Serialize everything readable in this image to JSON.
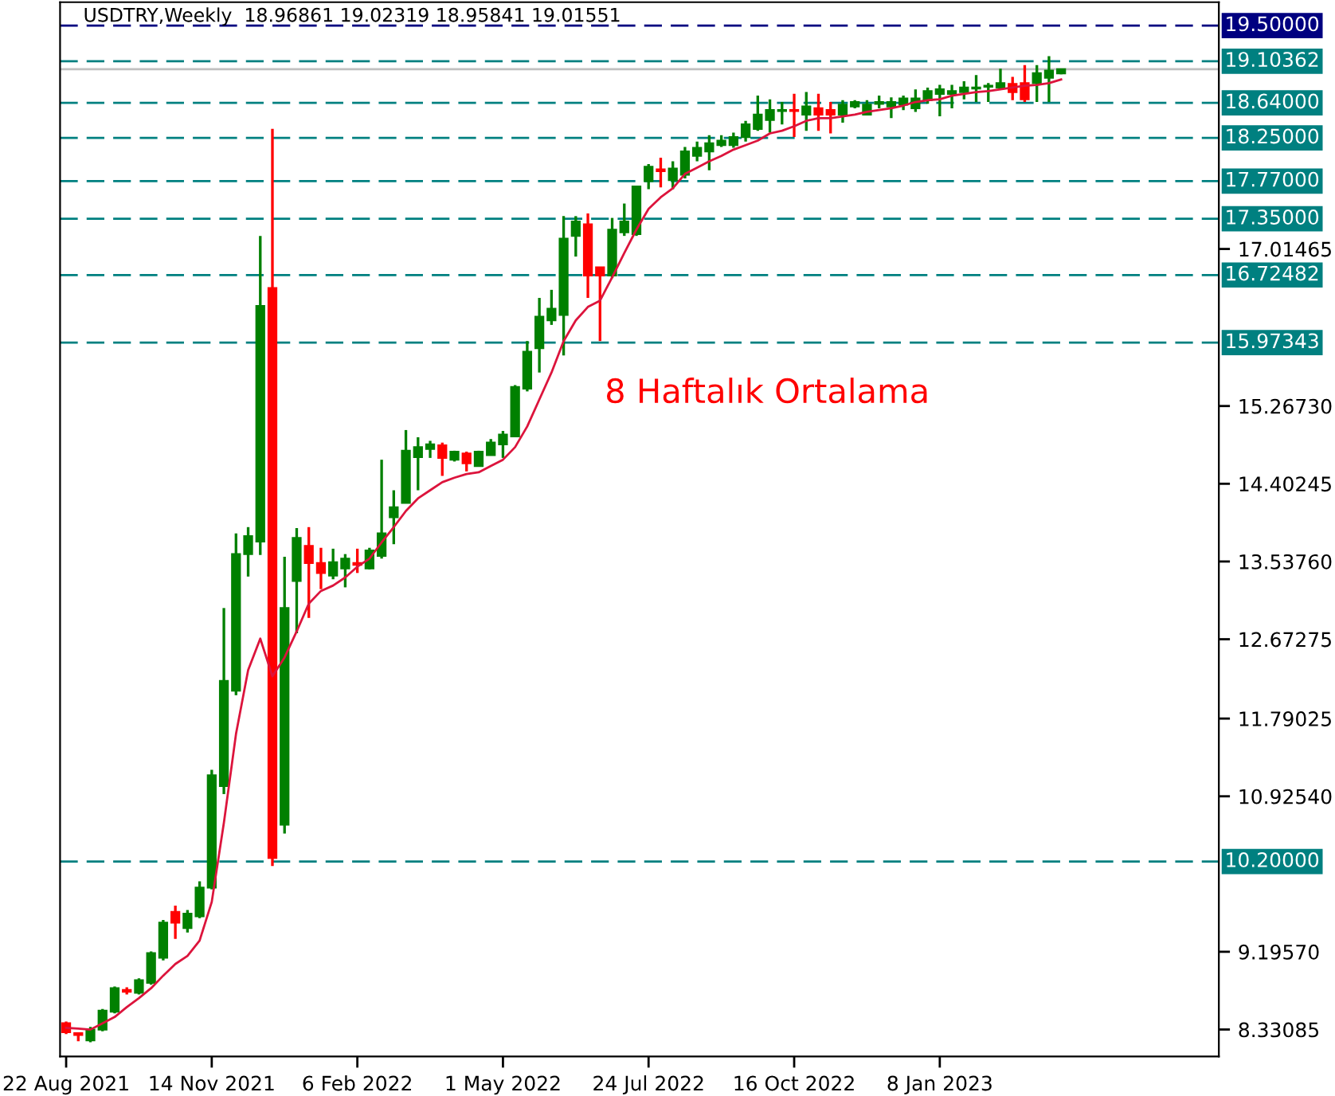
{
  "chart_data": {
    "type": "candlestick",
    "title": "USDTRY,Weekly  18.96861 19.02319 18.95841 19.01551",
    "annotations": [
      "8 Haftalık Ortalama"
    ],
    "categories": [
      "22 Aug 2021",
      null,
      null,
      null,
      null,
      null,
      null,
      null,
      null,
      null,
      null,
      null,
      "14 Nov 2021",
      null,
      null,
      null,
      null,
      null,
      null,
      null,
      null,
      null,
      null,
      null,
      "6 Feb 2022",
      null,
      null,
      null,
      null,
      null,
      null,
      null,
      null,
      null,
      null,
      null,
      "1 May 2022",
      null,
      null,
      null,
      null,
      null,
      null,
      null,
      null,
      null,
      null,
      null,
      "24 Jul 2022",
      null,
      null,
      null,
      null,
      null,
      null,
      null,
      null,
      null,
      null,
      null,
      "16 Oct 2022",
      null,
      null,
      null,
      null,
      null,
      null,
      null,
      null,
      null,
      null,
      null,
      "8 Jan 2023",
      null,
      null,
      null,
      null,
      null,
      null,
      null,
      null,
      null,
      null
    ],
    "series": [
      {
        "colors": [
          "#ff0000",
          "#ff0000",
          "#008000",
          "#008000",
          "#008000",
          "#ff0000",
          "#008000",
          "#008000",
          "#008000",
          "#ff0000",
          "#008000",
          "#008000",
          "#008000",
          "#008000",
          "#008000",
          "#008000",
          "#008000",
          "#ff0000",
          "#008000",
          "#008000",
          "#ff0000",
          "#ff0000",
          "#008000",
          "#008000",
          "#ff0000",
          "#008000",
          "#008000",
          "#008000",
          "#008000",
          "#008000",
          "#008000",
          "#ff0000",
          "#008000",
          "#ff0000",
          "#008000",
          "#008000",
          "#008000",
          "#008000",
          "#008000",
          "#008000",
          "#008000",
          "#008000",
          "#008000",
          "#ff0000",
          "#ff0000",
          "#008000",
          "#008000",
          "#008000",
          "#008000",
          "#ff0000",
          "#008000",
          "#008000",
          "#008000",
          "#008000",
          "#008000",
          "#008000",
          "#008000",
          "#008000",
          "#008000",
          "#008000",
          "#ff0000",
          "#008000",
          "#ff0000",
          "#ff0000",
          "#008000",
          "#008000",
          "#008000",
          "#008000",
          "#008000",
          "#008000",
          "#008000",
          "#008000",
          "#008000",
          "#008000",
          "#008000",
          "#008000",
          "#008000",
          "#008000",
          "#ff0000",
          "#ff0000",
          "#008000",
          "#008000",
          "#008000"
        ],
        "ohlc": [
          [
            8.4,
            8.42,
            8.28,
            8.3
          ],
          [
            8.29,
            8.3,
            8.2,
            8.27
          ],
          [
            8.21,
            8.36,
            8.19,
            8.33
          ],
          [
            8.33,
            8.56,
            8.31,
            8.54
          ],
          [
            8.53,
            8.81,
            8.51,
            8.79
          ],
          [
            8.77,
            8.8,
            8.72,
            8.75
          ],
          [
            8.74,
            8.9,
            8.72,
            8.88
          ],
          [
            8.85,
            9.2,
            8.83,
            9.18
          ],
          [
            9.13,
            9.55,
            9.1,
            9.52
          ],
          [
            9.64,
            9.71,
            9.34,
            9.52
          ],
          [
            9.46,
            9.66,
            9.41,
            9.62
          ],
          [
            9.59,
            9.98,
            9.57,
            9.91
          ],
          [
            9.91,
            11.22,
            9.89,
            11.16
          ],
          [
            11.04,
            13.02,
            10.95,
            12.21
          ],
          [
            12.1,
            13.85,
            12.05,
            13.62
          ],
          [
            13.62,
            13.92,
            13.37,
            13.82
          ],
          [
            13.76,
            17.16,
            13.61,
            16.38
          ],
          [
            16.58,
            18.35,
            10.15,
            10.24
          ],
          [
            10.61,
            13.59,
            10.51,
            13.02
          ],
          [
            13.32,
            13.91,
            12.74,
            13.8
          ],
          [
            13.71,
            13.92,
            12.91,
            13.52
          ],
          [
            13.52,
            13.69,
            13.23,
            13.41
          ],
          [
            13.38,
            13.68,
            13.34,
            13.53
          ],
          [
            13.46,
            13.62,
            13.25,
            13.57
          ],
          [
            13.52,
            13.68,
            13.41,
            13.5
          ],
          [
            13.46,
            13.69,
            13.45,
            13.66
          ],
          [
            13.6,
            14.67,
            13.57,
            13.85
          ],
          [
            14.03,
            14.33,
            13.73,
            14.14
          ],
          [
            14.19,
            15.0,
            14.19,
            14.77
          ],
          [
            14.7,
            14.92,
            14.33,
            14.81
          ],
          [
            14.79,
            14.88,
            14.69,
            14.84
          ],
          [
            14.83,
            14.86,
            14.49,
            14.69
          ],
          [
            14.67,
            14.77,
            14.65,
            14.76
          ],
          [
            14.74,
            14.76,
            14.54,
            14.63
          ],
          [
            14.6,
            14.77,
            14.6,
            14.76
          ],
          [
            14.72,
            14.9,
            14.72,
            14.86
          ],
          [
            14.84,
            14.99,
            14.69,
            14.95
          ],
          [
            14.93,
            15.5,
            14.93,
            15.48
          ],
          [
            15.46,
            15.99,
            15.43,
            15.87
          ],
          [
            15.91,
            16.47,
            15.64,
            16.26
          ],
          [
            16.22,
            16.56,
            16.17,
            16.35
          ],
          [
            16.28,
            17.38,
            15.83,
            17.13
          ],
          [
            17.16,
            17.38,
            16.93,
            17.32
          ],
          [
            17.29,
            17.41,
            16.47,
            16.72
          ],
          [
            16.81,
            16.81,
            15.99,
            16.72
          ],
          [
            16.72,
            17.36,
            16.69,
            17.23
          ],
          [
            17.2,
            17.52,
            17.16,
            17.32
          ],
          [
            17.18,
            17.72,
            17.16,
            17.71
          ],
          [
            17.77,
            17.96,
            17.68,
            17.93
          ],
          [
            17.9,
            18.03,
            17.7,
            17.88
          ],
          [
            17.78,
            17.99,
            17.68,
            17.91
          ],
          [
            17.84,
            18.15,
            17.8,
            18.1
          ],
          [
            18.05,
            18.21,
            17.99,
            18.14
          ],
          [
            18.1,
            18.28,
            17.89,
            18.19
          ],
          [
            18.17,
            18.28,
            18.15,
            18.22
          ],
          [
            18.17,
            18.31,
            18.14,
            18.26
          ],
          [
            18.26,
            18.44,
            18.21,
            18.4
          ],
          [
            18.35,
            18.72,
            18.33,
            18.51
          ],
          [
            18.45,
            18.68,
            18.31,
            18.56
          ],
          [
            18.55,
            18.65,
            18.4,
            18.56
          ],
          [
            18.56,
            18.74,
            18.26,
            18.55
          ],
          [
            18.51,
            18.76,
            18.33,
            18.6
          ],
          [
            18.58,
            18.74,
            18.33,
            18.51
          ],
          [
            18.56,
            18.65,
            18.3,
            18.51
          ],
          [
            18.51,
            18.67,
            18.42,
            18.62
          ],
          [
            18.6,
            18.67,
            18.58,
            18.65
          ],
          [
            18.51,
            18.67,
            18.51,
            18.62
          ],
          [
            18.63,
            18.72,
            18.58,
            18.65
          ],
          [
            18.6,
            18.7,
            18.47,
            18.65
          ],
          [
            18.62,
            18.72,
            18.56,
            18.69
          ],
          [
            18.58,
            18.79,
            18.54,
            18.69
          ],
          [
            18.67,
            18.81,
            18.63,
            18.77
          ],
          [
            18.74,
            18.84,
            18.49,
            18.79
          ],
          [
            18.74,
            18.84,
            18.58,
            18.77
          ],
          [
            18.76,
            18.88,
            18.68,
            18.81
          ],
          [
            18.8,
            18.95,
            18.65,
            18.81
          ],
          [
            18.82,
            18.86,
            18.65,
            18.83
          ],
          [
            18.81,
            19.02,
            18.79,
            18.86
          ],
          [
            18.85,
            18.93,
            18.67,
            18.76
          ],
          [
            18.86,
            19.06,
            18.65,
            18.68
          ],
          [
            18.86,
            19.06,
            18.65,
            18.97
          ],
          [
            18.92,
            19.16,
            18.65,
            19.0
          ],
          [
            18.96861,
            19.02319,
            18.95841,
            19.01551
          ]
        ]
      },
      {
        "type": "line",
        "color": "#dc143c",
        "values": [
          8.35,
          8.34,
          8.33,
          8.4,
          8.47,
          8.58,
          8.68,
          8.79,
          8.93,
          9.06,
          9.15,
          9.32,
          9.75,
          10.63,
          11.62,
          12.33,
          12.68,
          12.26,
          12.47,
          12.76,
          13.07,
          13.21,
          13.27,
          13.36,
          13.48,
          13.57,
          13.75,
          13.92,
          14.1,
          14.24,
          14.33,
          14.42,
          14.47,
          14.51,
          14.53,
          14.6,
          14.67,
          14.81,
          15.04,
          15.34,
          15.64,
          15.99,
          16.22,
          16.37,
          16.44,
          16.7,
          16.97,
          17.23,
          17.46,
          17.59,
          17.69,
          17.85,
          17.92,
          17.99,
          18.05,
          18.12,
          18.17,
          18.22,
          18.3,
          18.33,
          18.38,
          18.44,
          18.47,
          18.47,
          18.49,
          18.51,
          18.54,
          18.56,
          18.58,
          18.61,
          18.65,
          18.67,
          18.68,
          18.72,
          18.74,
          18.76,
          18.77,
          18.79,
          18.81,
          18.83,
          18.84,
          18.86,
          18.9
        ]
      }
    ],
    "ylim": [
      8.03,
      19.76
    ],
    "yticks": [
      {
        "value": 8.33085,
        "label": "8.33085"
      },
      {
        "value": 9.1957,
        "label": "9.19570"
      },
      {
        "value": 10.9254,
        "label": "10.92540"
      },
      {
        "value": 11.79025,
        "label": "11.79025"
      },
      {
        "value": 12.67275,
        "label": "12.67275"
      },
      {
        "value": 13.5376,
        "label": "13.53760"
      },
      {
        "value": 14.40245,
        "label": "14.40245"
      },
      {
        "value": 15.2673,
        "label": "15.26730"
      },
      {
        "value": 17.01465,
        "label": "17.01465"
      }
    ],
    "ref_lines": [
      {
        "axis": "y",
        "value": 19.5,
        "label": "19.50000",
        "color": "#000080",
        "line_style": "dashed"
      },
      {
        "axis": "y",
        "value": 19.10362,
        "label": "19.10362",
        "color": "#008080",
        "line_style": "dashed"
      },
      {
        "axis": "y",
        "value": 19.01551,
        "color": "#c0c0c0",
        "line_style": "solid"
      },
      {
        "axis": "y",
        "value": 18.64,
        "label": "18.64000",
        "color": "#008080",
        "line_style": "dashed"
      },
      {
        "axis": "y",
        "value": 18.25,
        "label": "18.25000",
        "color": "#008080",
        "line_style": "dashed"
      },
      {
        "axis": "y",
        "value": 17.77,
        "label": "17.77000",
        "color": "#008080",
        "line_style": "dashed"
      },
      {
        "axis": "y",
        "value": 17.35,
        "label": "17.35000",
        "color": "#008080",
        "line_style": "dashed"
      },
      {
        "axis": "y",
        "value": 16.72482,
        "label": "16.72482",
        "color": "#008080",
        "line_style": "dashed"
      },
      {
        "axis": "y",
        "value": 15.97343,
        "label": "15.97343",
        "color": "#008080",
        "line_style": "dashed"
      },
      {
        "axis": "y",
        "value": 10.2,
        "label": "10.20000",
        "color": "#008080",
        "line_style": "dashed"
      }
    ]
  }
}
